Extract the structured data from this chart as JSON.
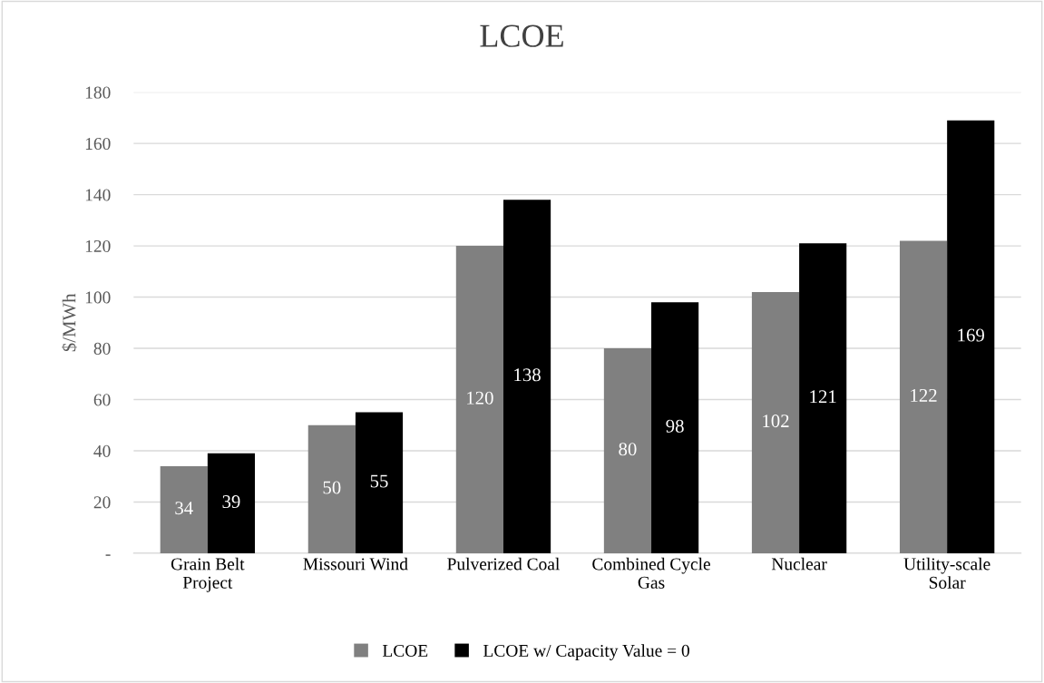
{
  "chart_data": {
    "type": "bar",
    "title": "LCOE",
    "ylabel": "$/MWh",
    "categories": [
      "Grain Belt\nProject",
      "Missouri Wind",
      "Pulverized Coal",
      "Combined Cycle\nGas",
      "Nuclear",
      "Utility-scale\nSolar"
    ],
    "series": [
      {
        "name": "LCOE",
        "color": "#808080",
        "values": [
          34,
          50,
          120,
          80,
          102,
          122
        ]
      },
      {
        "name": "LCOE w/ Capacity Value = 0",
        "color": "#000000",
        "values": [
          39,
          55,
          138,
          98,
          121,
          169
        ]
      }
    ],
    "ylim": [
      0,
      180
    ],
    "yticks": [
      {
        "value": 0,
        "label": "-"
      },
      20,
      40,
      60,
      80,
      100,
      120,
      140,
      160,
      180
    ],
    "grid": "y",
    "legend": "bottom",
    "data_labels": true
  }
}
